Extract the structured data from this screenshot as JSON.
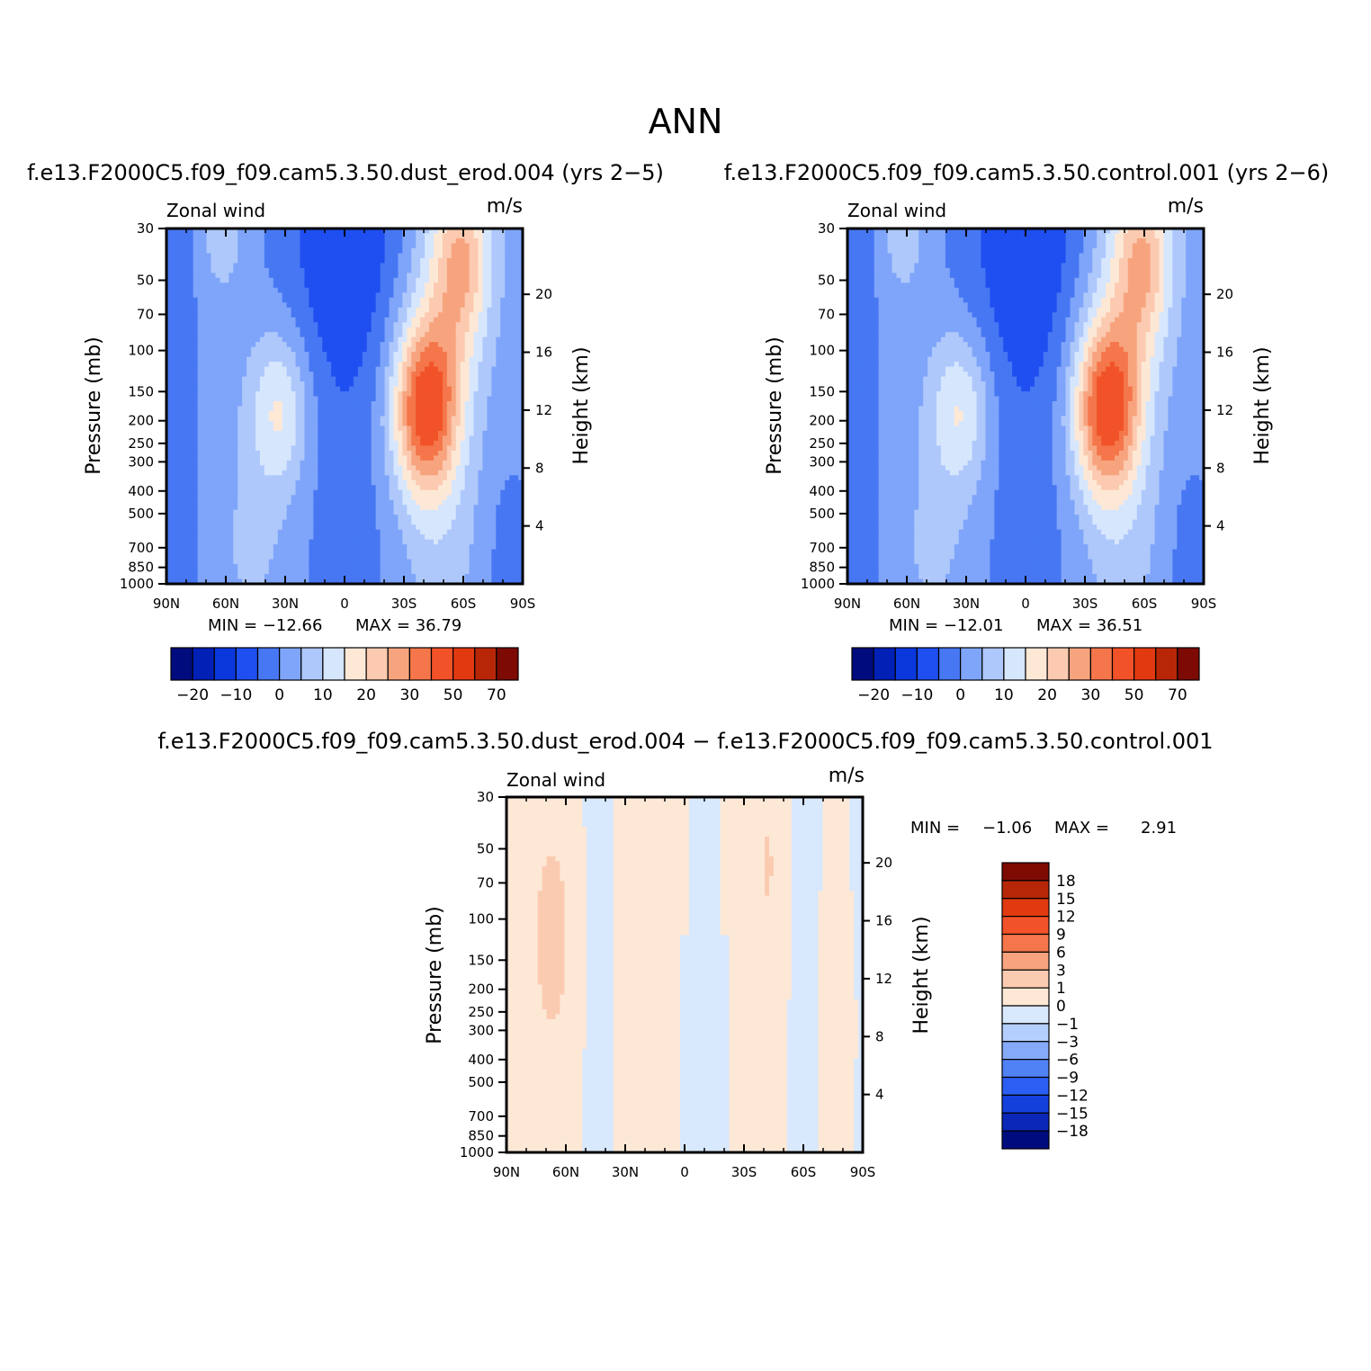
{
  "figure_title": "ANN",
  "colors": {
    "ann_palette": [
      "#000c7e",
      "#0020b6",
      "#0a38dc",
      "#1f4ff0",
      "#4777f2",
      "#7fa5fa",
      "#aec8fb",
      "#d6e6fd",
      "#fde8d6",
      "#fbcab0",
      "#f7a47e",
      "#f4764a",
      "#f25228",
      "#e13a10",
      "#b72707",
      "#7d0b04"
    ],
    "diff_palette": [
      "#000c7e",
      "#0a27b8",
      "#1440dc",
      "#2b5ef2",
      "#5082f6",
      "#85aaf9",
      "#b4cffd",
      "#d8e8fd",
      "#fde8d6",
      "#fbcbb1",
      "#f7a47e",
      "#f4764a",
      "#f25228",
      "#e13a10",
      "#b72707",
      "#7d0b04"
    ]
  },
  "chart_data": [
    {
      "id": "panel1",
      "type": "heatmap",
      "title": "f.e13.F2000C5.f09_f09.cam5.3.50.dust_erod.004 (yrs 2−5)",
      "left_label": "Zonal wind",
      "right_label": "m/s",
      "xlabel": "",
      "ylabel": "Pressure (mb)",
      "y2label": "Height (km)",
      "x_ticks": [
        "90N",
        "60N",
        "30N",
        "0",
        "30S",
        "60S",
        "90S"
      ],
      "y_ticks": [
        30,
        50,
        70,
        100,
        150,
        200,
        250,
        300,
        400,
        500,
        700,
        850,
        1000
      ],
      "y2_ticks": [
        20,
        16,
        12,
        8,
        4
      ],
      "min_text": "MIN = −12.66",
      "max_text": "MAX =  36.79",
      "colorbar_labels": [
        "−20",
        "−10",
        "0",
        "10",
        "20",
        "30",
        "50",
        "70"
      ],
      "fields": {
        "x": [
          90,
          -90
        ],
        "p": [
          1000,
          30
        ]
      },
      "min": -12.66,
      "max": 36.79
    },
    {
      "id": "panel2",
      "type": "heatmap",
      "title": "f.e13.F2000C5.f09_f09.cam5.3.50.control.001 (yrs 2−6)",
      "left_label": "Zonal wind",
      "right_label": "m/s",
      "xlabel": "",
      "ylabel": "Pressure (mb)",
      "y2label": "Height (km)",
      "x_ticks": [
        "90N",
        "60N",
        "30N",
        "0",
        "30S",
        "60S",
        "90S"
      ],
      "y_ticks": [
        30,
        50,
        70,
        100,
        150,
        200,
        250,
        300,
        400,
        500,
        700,
        850,
        1000
      ],
      "y2_ticks": [
        20,
        16,
        12,
        8,
        4
      ],
      "min_text": "MIN = −12.01",
      "max_text": "MAX =  36.51",
      "colorbar_labels": [
        "−20",
        "−10",
        "0",
        "10",
        "20",
        "30",
        "50",
        "70"
      ],
      "min": -12.01,
      "max": 36.51
    },
    {
      "id": "panel3",
      "type": "heatmap",
      "title": "f.e13.F2000C5.f09_f09.cam5.3.50.dust_erod.004 − f.e13.F2000C5.f09_f09.cam5.3.50.control.001",
      "left_label": "Zonal wind",
      "right_label": "m/s",
      "xlabel": "",
      "ylabel": "Pressure (mb)",
      "y2label": "Height (km)",
      "x_ticks": [
        "90N",
        "60N",
        "30N",
        "0",
        "30S",
        "60S",
        "90S"
      ],
      "y_ticks": [
        30,
        50,
        70,
        100,
        150,
        200,
        250,
        300,
        400,
        500,
        700,
        850,
        1000
      ],
      "y2_ticks": [
        20,
        16,
        12,
        8,
        4
      ],
      "min_label": "MIN =",
      "min_value": "−1.06",
      "max_label": "MAX =",
      "max_value": "2.91",
      "colorbar_labels": [
        "18",
        "15",
        "12",
        "9",
        "6",
        "3",
        "1",
        "0",
        "−1",
        "−3",
        "−6",
        "−9",
        "−12",
        "−15",
        "−18"
      ],
      "min": -1.06,
      "max": 2.91
    }
  ]
}
